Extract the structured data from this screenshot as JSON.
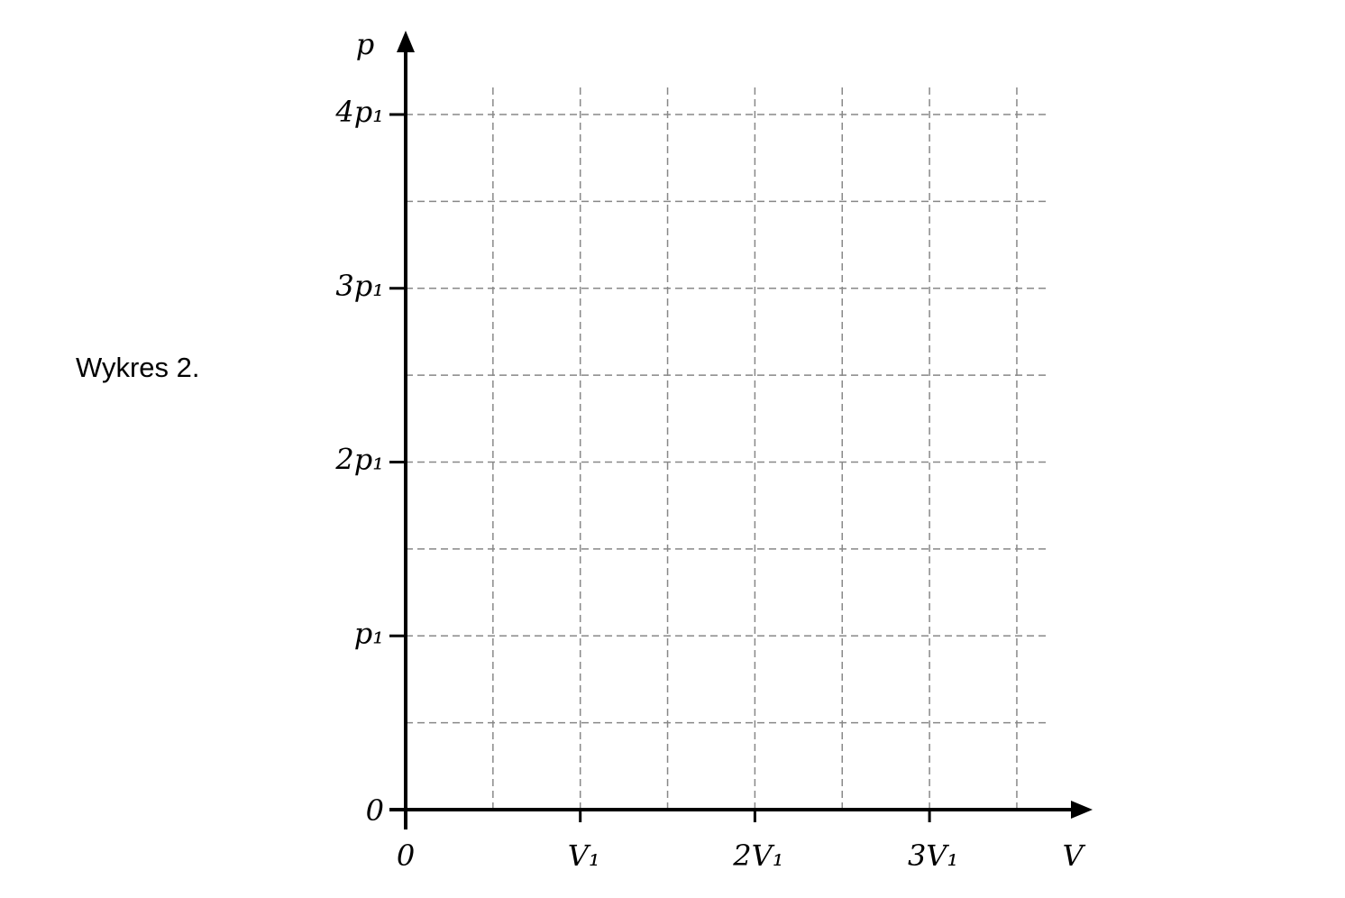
{
  "caption": "Wykres 2.",
  "chart_data": {
    "type": "line",
    "title": "",
    "xlabel": "V",
    "ylabel": "p",
    "xlim": [
      0,
      3.5
    ],
    "ylim": [
      0,
      4
    ],
    "x_unit": "V₁",
    "y_unit": "p₁",
    "x_ticks": [
      {
        "value": 0,
        "label": "0"
      },
      {
        "value": 1,
        "label": "V₁"
      },
      {
        "value": 2,
        "label": "2V₁"
      },
      {
        "value": 3,
        "label": "3V₁"
      }
    ],
    "y_ticks": [
      {
        "value": 0,
        "label": "0"
      },
      {
        "value": 1,
        "label": "p₁"
      },
      {
        "value": 2,
        "label": "2p₁"
      },
      {
        "value": 3,
        "label": "3p₁"
      },
      {
        "value": 4,
        "label": "4p₁"
      }
    ],
    "grid": {
      "on": true,
      "style": "dashed",
      "x_step": 0.5,
      "y_step": 0.5,
      "color": "#888888"
    },
    "series": []
  }
}
